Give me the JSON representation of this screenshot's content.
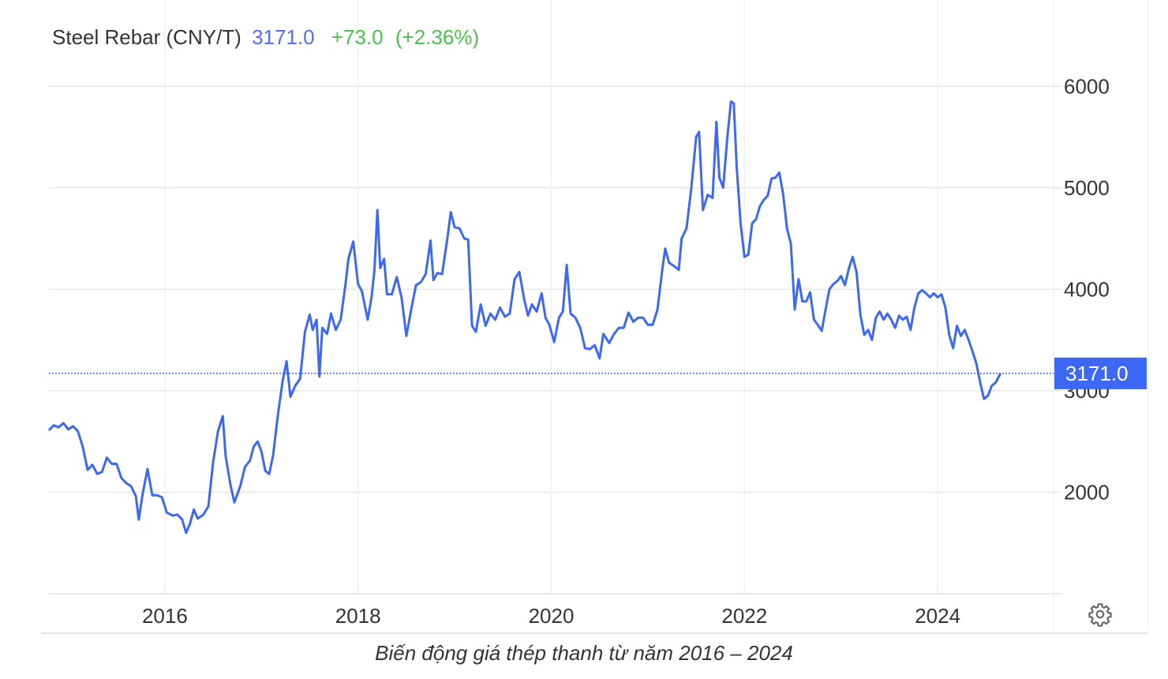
{
  "header": {
    "symbol": "Steel Rebar (CNY/T)",
    "last": "3171.0",
    "change": "+73.0",
    "change_pct": "(+2.36%)"
  },
  "caption": "Biến động giá thép thanh từ năm 2016 – 2024",
  "icons": {
    "settings": "gear-icon"
  },
  "colors": {
    "line": "#3d68f5",
    "last_label_bg": "#3d68f5",
    "change": "#48c34a",
    "last_text": "#4f6ef7",
    "grid": "#e6e6e6"
  },
  "chart_data": {
    "type": "line",
    "title": "",
    "xlabel": "",
    "ylabel": "",
    "y_axis_side": "right",
    "grid": true,
    "xlim": [
      2014.8,
      2025.2
    ],
    "ylim": [
      1000,
      6850
    ],
    "yticks": [
      2000,
      3000,
      4000,
      5000,
      6000
    ],
    "xticks": [
      2016,
      2018,
      2020,
      2022,
      2024
    ],
    "last_value": 3171.0,
    "series": [
      {
        "name": "Steel Rebar (CNY/T)",
        "points": [
          [
            2014.8,
            2610
          ],
          [
            2014.85,
            2660
          ],
          [
            2014.9,
            2640
          ],
          [
            2014.95,
            2680
          ],
          [
            2015.0,
            2620
          ],
          [
            2015.05,
            2650
          ],
          [
            2015.1,
            2600
          ],
          [
            2015.15,
            2450
          ],
          [
            2015.2,
            2220
          ],
          [
            2015.25,
            2270
          ],
          [
            2015.3,
            2180
          ],
          [
            2015.35,
            2200
          ],
          [
            2015.4,
            2340
          ],
          [
            2015.45,
            2280
          ],
          [
            2015.5,
            2280
          ],
          [
            2015.55,
            2140
          ],
          [
            2015.6,
            2090
          ],
          [
            2015.65,
            2060
          ],
          [
            2015.7,
            1960
          ],
          [
            2015.73,
            1730
          ],
          [
            2015.77,
            1980
          ],
          [
            2015.82,
            2230
          ],
          [
            2015.87,
            1970
          ],
          [
            2015.92,
            1970
          ],
          [
            2015.97,
            1950
          ],
          [
            2016.02,
            1800
          ],
          [
            2016.08,
            1770
          ],
          [
            2016.13,
            1780
          ],
          [
            2016.18,
            1730
          ],
          [
            2016.22,
            1600
          ],
          [
            2016.26,
            1690
          ],
          [
            2016.3,
            1830
          ],
          [
            2016.34,
            1740
          ],
          [
            2016.4,
            1780
          ],
          [
            2016.45,
            1860
          ],
          [
            2016.5,
            2300
          ],
          [
            2016.55,
            2600
          ],
          [
            2016.6,
            2750
          ],
          [
            2016.63,
            2350
          ],
          [
            2016.68,
            2070
          ],
          [
            2016.72,
            1900
          ],
          [
            2016.78,
            2060
          ],
          [
            2016.83,
            2250
          ],
          [
            2016.88,
            2310
          ],
          [
            2016.92,
            2450
          ],
          [
            2016.96,
            2500
          ],
          [
            2017.0,
            2400
          ],
          [
            2017.04,
            2210
          ],
          [
            2017.08,
            2180
          ],
          [
            2017.12,
            2360
          ],
          [
            2017.17,
            2760
          ],
          [
            2017.22,
            3100
          ],
          [
            2017.26,
            3290
          ],
          [
            2017.3,
            2940
          ],
          [
            2017.35,
            3050
          ],
          [
            2017.4,
            3120
          ],
          [
            2017.45,
            3580
          ],
          [
            2017.5,
            3750
          ],
          [
            2017.53,
            3600
          ],
          [
            2017.57,
            3700
          ],
          [
            2017.6,
            3140
          ],
          [
            2017.63,
            3620
          ],
          [
            2017.68,
            3560
          ],
          [
            2017.72,
            3760
          ],
          [
            2017.77,
            3600
          ],
          [
            2017.82,
            3700
          ],
          [
            2017.87,
            4050
          ],
          [
            2017.9,
            4300
          ],
          [
            2017.95,
            4470
          ],
          [
            2018.0,
            4050
          ],
          [
            2018.04,
            3980
          ],
          [
            2018.1,
            3700
          ],
          [
            2018.14,
            3920
          ],
          [
            2018.17,
            4190
          ],
          [
            2018.2,
            4780
          ],
          [
            2018.23,
            4210
          ],
          [
            2018.27,
            4300
          ],
          [
            2018.3,
            3950
          ],
          [
            2018.35,
            3950
          ],
          [
            2018.4,
            4120
          ],
          [
            2018.45,
            3920
          ],
          [
            2018.5,
            3540
          ],
          [
            2018.55,
            3800
          ],
          [
            2018.6,
            4040
          ],
          [
            2018.65,
            4070
          ],
          [
            2018.7,
            4150
          ],
          [
            2018.75,
            4480
          ],
          [
            2018.78,
            4090
          ],
          [
            2018.82,
            4160
          ],
          [
            2018.87,
            4150
          ],
          [
            2018.92,
            4470
          ],
          [
            2018.96,
            4760
          ],
          [
            2019.0,
            4610
          ],
          [
            2019.05,
            4600
          ],
          [
            2019.1,
            4500
          ],
          [
            2019.14,
            4490
          ],
          [
            2019.18,
            3640
          ],
          [
            2019.22,
            3580
          ],
          [
            2019.27,
            3850
          ],
          [
            2019.32,
            3640
          ],
          [
            2019.37,
            3760
          ],
          [
            2019.42,
            3700
          ],
          [
            2019.47,
            3820
          ],
          [
            2019.52,
            3730
          ],
          [
            2019.57,
            3760
          ],
          [
            2019.62,
            4100
          ],
          [
            2019.67,
            4170
          ],
          [
            2019.72,
            3900
          ],
          [
            2019.76,
            3740
          ],
          [
            2019.8,
            3850
          ],
          [
            2019.85,
            3780
          ],
          [
            2019.9,
            3960
          ],
          [
            2019.94,
            3720
          ],
          [
            2019.98,
            3650
          ],
          [
            2020.03,
            3480
          ],
          [
            2020.08,
            3720
          ],
          [
            2020.12,
            3780
          ],
          [
            2020.16,
            4240
          ],
          [
            2020.2,
            3760
          ],
          [
            2020.25,
            3720
          ],
          [
            2020.3,
            3620
          ],
          [
            2020.35,
            3420
          ],
          [
            2020.4,
            3410
          ],
          [
            2020.45,
            3450
          ],
          [
            2020.5,
            3320
          ],
          [
            2020.54,
            3560
          ],
          [
            2020.6,
            3470
          ],
          [
            2020.65,
            3560
          ],
          [
            2020.7,
            3620
          ],
          [
            2020.75,
            3620
          ],
          [
            2020.8,
            3770
          ],
          [
            2020.85,
            3680
          ],
          [
            2020.9,
            3720
          ],
          [
            2020.95,
            3720
          ],
          [
            2021.0,
            3650
          ],
          [
            2021.05,
            3650
          ],
          [
            2021.1,
            3800
          ],
          [
            2021.15,
            4200
          ],
          [
            2021.18,
            4400
          ],
          [
            2021.22,
            4260
          ],
          [
            2021.27,
            4230
          ],
          [
            2021.32,
            4190
          ],
          [
            2021.35,
            4500
          ],
          [
            2021.4,
            4600
          ],
          [
            2021.45,
            5000
          ],
          [
            2021.5,
            5500
          ],
          [
            2021.53,
            5550
          ],
          [
            2021.57,
            4780
          ],
          [
            2021.62,
            4930
          ],
          [
            2021.67,
            4900
          ],
          [
            2021.71,
            5650
          ],
          [
            2021.74,
            5100
          ],
          [
            2021.78,
            5000
          ],
          [
            2021.82,
            5470
          ],
          [
            2021.86,
            5850
          ],
          [
            2021.89,
            5830
          ],
          [
            2021.92,
            5200
          ],
          [
            2021.96,
            4650
          ],
          [
            2022.0,
            4320
          ],
          [
            2022.04,
            4340
          ],
          [
            2022.08,
            4650
          ],
          [
            2022.12,
            4690
          ],
          [
            2022.16,
            4820
          ],
          [
            2022.2,
            4880
          ],
          [
            2022.24,
            4920
          ],
          [
            2022.28,
            5090
          ],
          [
            2022.32,
            5100
          ],
          [
            2022.36,
            5150
          ],
          [
            2022.4,
            4940
          ],
          [
            2022.44,
            4600
          ],
          [
            2022.48,
            4450
          ],
          [
            2022.52,
            3800
          ],
          [
            2022.56,
            4100
          ],
          [
            2022.6,
            3880
          ],
          [
            2022.64,
            3880
          ],
          [
            2022.68,
            3970
          ],
          [
            2022.72,
            3700
          ],
          [
            2022.76,
            3650
          ],
          [
            2022.8,
            3590
          ],
          [
            2022.84,
            3800
          ],
          [
            2022.88,
            4000
          ],
          [
            2022.92,
            4050
          ],
          [
            2022.96,
            4080
          ],
          [
            2023.0,
            4130
          ],
          [
            2023.04,
            4040
          ],
          [
            2023.08,
            4200
          ],
          [
            2023.12,
            4320
          ],
          [
            2023.16,
            4170
          ],
          [
            2023.2,
            3750
          ],
          [
            2023.24,
            3550
          ],
          [
            2023.28,
            3600
          ],
          [
            2023.32,
            3500
          ],
          [
            2023.36,
            3720
          ],
          [
            2023.4,
            3780
          ],
          [
            2023.44,
            3700
          ],
          [
            2023.48,
            3760
          ],
          [
            2023.52,
            3700
          ],
          [
            2023.56,
            3620
          ],
          [
            2023.6,
            3740
          ],
          [
            2023.64,
            3700
          ],
          [
            2023.68,
            3730
          ],
          [
            2023.72,
            3600
          ],
          [
            2023.76,
            3820
          ],
          [
            2023.8,
            3960
          ],
          [
            2023.84,
            3990
          ],
          [
            2023.88,
            3960
          ],
          [
            2023.92,
            3920
          ],
          [
            2023.96,
            3960
          ],
          [
            2024.0,
            3920
          ],
          [
            2024.04,
            3950
          ],
          [
            2024.08,
            3820
          ],
          [
            2024.12,
            3550
          ],
          [
            2024.16,
            3420
          ],
          [
            2024.2,
            3640
          ],
          [
            2024.24,
            3540
          ],
          [
            2024.28,
            3600
          ],
          [
            2024.32,
            3500
          ],
          [
            2024.36,
            3390
          ],
          [
            2024.4,
            3270
          ],
          [
            2024.44,
            3080
          ],
          [
            2024.48,
            2920
          ],
          [
            2024.52,
            2950
          ],
          [
            2024.56,
            3050
          ],
          [
            2024.6,
            3080
          ],
          [
            2024.65,
            3171
          ]
        ]
      }
    ]
  }
}
